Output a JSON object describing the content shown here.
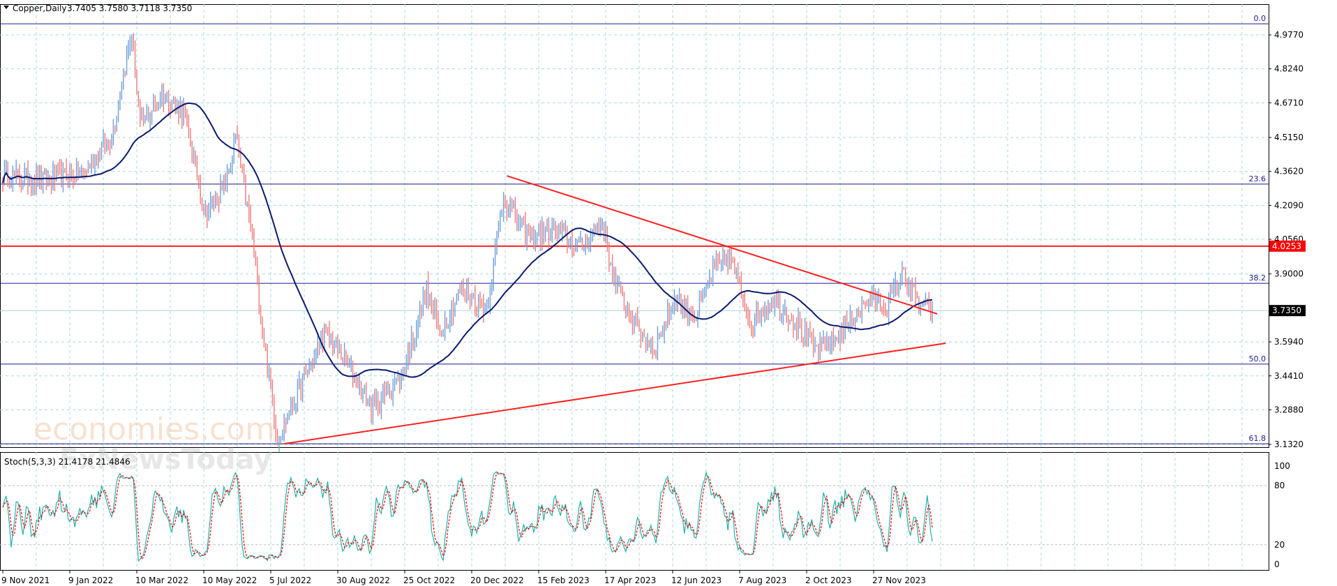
{
  "header": {
    "symbol": "Copper,Daily",
    "ohlc": "3.7405 3.7580 3.7118 3.7350"
  },
  "watermarks": {
    "brand1": "economies.com",
    "brand2": "FxNewsToday"
  },
  "price_axis": {
    "ticks": [
      "4.9770",
      "4.8240",
      "4.6710",
      "4.5150",
      "4.3620",
      "4.2090",
      "4.0560",
      "3.9000",
      "3.5940",
      "3.4410",
      "3.2880",
      "3.1320"
    ]
  },
  "date_axis": {
    "ticks": [
      "9 Nov 2021",
      "9 Jan 2022",
      "10 Mar 2022",
      "10 May 2022",
      "5 Jul 2022",
      "30 Aug 2022",
      "25 Oct 2022",
      "20 Dec 2022",
      "15 Feb 2023",
      "17 Apr 2023",
      "12 Jun 2023",
      "7 Aug 2023",
      "2 Oct 2023",
      "27 Nov 2023"
    ]
  },
  "stoch": {
    "label": "Stoch(5,3,3) 21.4178 21.4846",
    "ticks": [
      "100",
      "80",
      "20",
      "0"
    ]
  },
  "colors": {
    "bull": "#6f9fd8",
    "bear": "#f07b7b",
    "ma": "#0a1a6e",
    "trend": "#ff2020",
    "fib": "#1a1a8c",
    "stoch_main": "#20b2aa",
    "stoch_signal": "#ff0000"
  },
  "chart_data": {
    "type": "candlestick",
    "title": "Copper,Daily",
    "ylim": [
      3.1,
      5.03
    ],
    "bars": 556,
    "close_keypoints": [
      [
        0,
        4.345
      ],
      [
        24,
        4.32
      ],
      [
        49,
        4.36
      ],
      [
        65,
        4.52
      ],
      [
        77,
        4.99
      ],
      [
        82,
        4.56
      ],
      [
        95,
        4.71
      ],
      [
        108,
        4.63
      ],
      [
        121,
        4.17
      ],
      [
        134,
        4.32
      ],
      [
        139,
        4.52
      ],
      [
        149,
        4.06
      ],
      [
        156,
        3.6
      ],
      [
        164,
        3.155
      ],
      [
        174,
        3.33
      ],
      [
        192,
        3.635
      ],
      [
        207,
        3.48
      ],
      [
        220,
        3.29
      ],
      [
        238,
        3.44
      ],
      [
        253,
        3.83
      ],
      [
        261,
        3.635
      ],
      [
        274,
        3.83
      ],
      [
        289,
        3.75
      ],
      [
        299,
        4.25
      ],
      [
        314,
        4.06
      ],
      [
        330,
        4.1
      ],
      [
        345,
        4.02
      ],
      [
        358,
        4.13
      ],
      [
        365,
        3.87
      ],
      [
        378,
        3.67
      ],
      [
        389,
        3.56
      ],
      [
        401,
        3.79
      ],
      [
        414,
        3.71
      ],
      [
        424,
        3.91
      ],
      [
        434,
        3.98
      ],
      [
        442,
        3.79
      ],
      [
        447,
        3.67
      ],
      [
        460,
        3.79
      ],
      [
        475,
        3.67
      ],
      [
        485,
        3.56
      ],
      [
        496,
        3.6
      ],
      [
        508,
        3.71
      ],
      [
        518,
        3.79
      ],
      [
        528,
        3.75
      ],
      [
        538,
        3.91
      ],
      [
        546,
        3.77
      ],
      [
        555,
        3.735
      ]
    ],
    "moving_average_period": 50,
    "fib_levels": [
      {
        "label": "0.0",
        "price": 5.027
      },
      {
        "label": "23.6",
        "price": 4.305
      },
      {
        "label": "38.2",
        "price": 3.858
      },
      {
        "label": "50.0",
        "price": 3.494
      },
      {
        "label": "61.8",
        "price": 3.135
      }
    ],
    "resistance": {
      "price": 4.0253,
      "label": "4.0253"
    },
    "current_price": {
      "price": 3.735,
      "label": "3.7350"
    },
    "trendlines": [
      {
        "from": [
          301,
          4.342
        ],
        "to": [
          558,
          3.72
        ]
      },
      {
        "from": [
          168,
          3.135
        ],
        "to": [
          563,
          3.588
        ]
      }
    ],
    "stoch_levels": [
      80,
      20
    ]
  }
}
